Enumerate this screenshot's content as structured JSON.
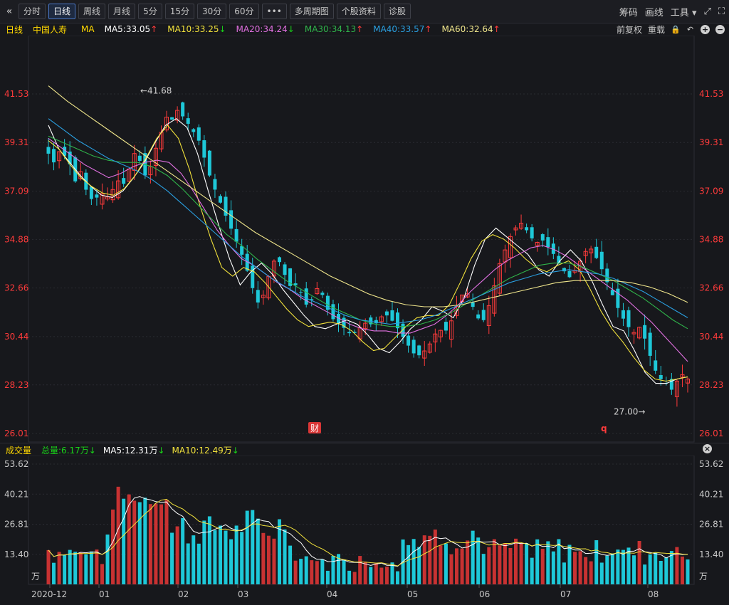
{
  "toolbar": {
    "back_glyph": "«",
    "buttons": [
      "分时",
      "日线",
      "周线",
      "月线",
      "5分",
      "15分",
      "30分",
      "60分",
      "•••",
      "多周期图",
      "个股资料",
      "诊股"
    ],
    "active_index": 1,
    "right": {
      "chips": "筹码",
      "draw": "画线",
      "tools": "工具"
    }
  },
  "legend": {
    "period": "日线",
    "stock_name": "中国人寿",
    "ma_label": "MA",
    "ma": [
      {
        "label": "MA5:33.05",
        "dir": "up",
        "color": "#ffffff"
      },
      {
        "label": "MA10:33.25",
        "dir": "down",
        "color": "#f2e23c"
      },
      {
        "label": "MA20:34.24",
        "dir": "down",
        "color": "#e070e0"
      },
      {
        "label": "MA30:34.13",
        "dir": "up",
        "color": "#2fb34a"
      },
      {
        "label": "MA40:33.57",
        "dir": "up",
        "color": "#2a9fe0"
      },
      {
        "label": "MA60:32.64",
        "dir": "up",
        "color": "#f0e68c"
      }
    ],
    "adjust": "前复权",
    "redraw": "重载"
  },
  "volume_legend": {
    "title": "成交量",
    "total": "总量:6.17万",
    "ma5": "MA5:12.31万",
    "ma10": "MA10:12.49万"
  },
  "chart_data": [
    {
      "type": "candlestick",
      "y_ticks": [
        "41.53",
        "39.31",
        "37.09",
        "34.88",
        "32.66",
        "30.44",
        "28.23",
        "26.01"
      ],
      "ylim": [
        26.01,
        41.53
      ],
      "x_labels": [
        "2020-12",
        "01",
        "02",
        "03",
        "04",
        "05",
        "06",
        "07",
        "08"
      ],
      "annotations": {
        "high": "←41.68",
        "low": "27.00→",
        "badge_fin": "财",
        "badge_q": "q"
      },
      "colors": {
        "up": "#ff3b3b",
        "down": "#1ec8d8"
      },
      "close_path": [
        38.8,
        38.4,
        38.9,
        38.7,
        38.3,
        37.5,
        38.0,
        37.1,
        36.7,
        36.8,
        37.0,
        36.8,
        37.2,
        37.6,
        37.4,
        38.2,
        38.9,
        38.4,
        37.7,
        38.3,
        39.2,
        39.9,
        40.6,
        40.3,
        40.9,
        40.4,
        40.1,
        39.7,
        39.3,
        38.4,
        37.6,
        37.0,
        36.4,
        35.8,
        35.2,
        34.6,
        34.0,
        33.2,
        32.4,
        31.8,
        32.6,
        33.5,
        34.1,
        33.7,
        33.0,
        32.6,
        32.9,
        32.2,
        31.7,
        32.4,
        32.8,
        32.0,
        31.4,
        31.1,
        31.0,
        30.7,
        30.5,
        30.7,
        31.0,
        31.1,
        30.9,
        31.2,
        31.5,
        31.3,
        31.0,
        30.6,
        30.2,
        29.8,
        29.5,
        29.7,
        29.9,
        30.4,
        30.8,
        30.6,
        30.9,
        31.6,
        32.2,
        32.6,
        32.0,
        31.4,
        31.0,
        31.6,
        32.4,
        33.6,
        34.2,
        34.9,
        35.3,
        35.7,
        35.4,
        35.0,
        34.7,
        34.9,
        34.6,
        34.3,
        33.9,
        33.5,
        33.1,
        33.4,
        33.8,
        34.3,
        34.5,
        34.1,
        33.6,
        33.0,
        32.4,
        31.8,
        31.3,
        30.9,
        30.6,
        30.9,
        30.4,
        29.6,
        28.9,
        28.5,
        28.3,
        28.0,
        28.4,
        28.7,
        28.5
      ],
      "ma_series": [
        {
          "name": "MA5",
          "color": "#ffffff",
          "values": [
            40.1,
            39.0,
            38.4,
            37.8,
            37.3,
            36.9,
            36.8,
            37.1,
            37.7,
            38.4,
            39.3,
            40.1,
            40.4,
            40.0,
            38.8,
            37.1,
            35.5,
            34.0,
            32.8,
            33.4,
            33.8,
            33.3,
            32.6,
            32.0,
            31.4,
            30.9,
            30.8,
            31.0,
            31.2,
            31.0,
            30.5,
            29.9,
            29.7,
            30.2,
            30.8,
            31.2,
            31.8,
            31.6,
            31.3,
            32.2,
            33.7,
            34.9,
            35.4,
            35.0,
            34.6,
            34.2,
            33.5,
            33.2,
            33.9,
            34.4,
            33.9,
            33.0,
            31.9,
            30.9,
            30.7,
            29.8,
            28.8,
            28.3,
            28.3,
            28.5,
            28.6
          ]
        },
        {
          "name": "MA10",
          "color": "#f2e23c",
          "values": [
            39.4,
            39.0,
            38.3,
            37.7,
            37.3,
            37.0,
            36.9,
            37.2,
            37.8,
            38.6,
            39.5,
            40.1,
            39.5,
            38.1,
            36.4,
            34.9,
            33.6,
            33.2,
            33.6,
            33.4,
            32.9,
            32.3,
            31.7,
            31.2,
            30.9,
            31.0,
            31.1,
            31.0,
            30.7,
            30.2,
            29.8,
            29.9,
            30.4,
            30.9,
            31.3,
            31.4,
            31.4,
            31.9,
            32.9,
            34.0,
            34.8,
            35.1,
            34.9,
            34.5,
            34.0,
            33.6,
            33.4,
            33.7,
            33.9,
            33.5,
            32.6,
            31.6,
            30.8,
            30.2,
            29.5,
            28.9,
            28.5,
            28.4,
            28.5,
            28.6
          ]
        },
        {
          "name": "MA20",
          "color": "#e070e0",
          "values": [
            39.5,
            39.1,
            38.7,
            38.3,
            38.0,
            37.7,
            37.9,
            38.2,
            38.4,
            38.5,
            38.4,
            37.9,
            37.1,
            36.2,
            35.3,
            34.6,
            34.0,
            33.7,
            33.3,
            32.9,
            32.6,
            32.2,
            31.9,
            31.6,
            31.3,
            31.0,
            30.8,
            30.7,
            30.7,
            30.6,
            30.6,
            30.8,
            31.0,
            31.4,
            31.9,
            32.5,
            33.0,
            33.5,
            33.9,
            34.2,
            34.5,
            34.6,
            34.4,
            34.1,
            33.7,
            33.3,
            32.9,
            32.5,
            32.1,
            31.6,
            31.1,
            30.5,
            29.9,
            29.3
          ]
        },
        {
          "name": "MA30",
          "color": "#2fb34a",
          "values": [
            39.6,
            39.3,
            39.0,
            38.7,
            38.5,
            38.4,
            38.4,
            38.2,
            37.8,
            37.2,
            36.5,
            35.8,
            35.1,
            34.6,
            34.0,
            33.5,
            33.0,
            32.6,
            32.2,
            31.8,
            31.5,
            31.2,
            31.0,
            30.9,
            30.9,
            31.0,
            31.2,
            31.5,
            31.9,
            32.3,
            32.7,
            33.1,
            33.4,
            33.7,
            33.8,
            33.8,
            33.6,
            33.3,
            33.0,
            32.6,
            32.2,
            31.7,
            31.2,
            30.8
          ]
        },
        {
          "name": "MA40",
          "color": "#2a9fe0",
          "values": [
            40.4,
            39.9,
            39.4,
            39.0,
            38.6,
            38.3,
            38.0,
            37.6,
            37.1,
            36.5,
            35.9,
            35.3,
            34.7,
            34.1,
            33.6,
            33.1,
            32.7,
            32.3,
            32.0,
            31.7,
            31.4,
            31.2,
            31.1,
            31.0,
            31.1,
            31.2,
            31.4,
            31.7,
            32.0,
            32.3,
            32.6,
            32.9,
            33.1,
            33.3,
            33.4,
            33.5,
            33.4,
            33.3,
            33.1,
            32.8,
            32.5,
            32.1,
            31.7,
            31.3
          ]
        },
        {
          "name": "MA60",
          "color": "#f0e68c",
          "values": [
            41.9,
            41.2,
            40.6,
            40.0,
            39.4,
            38.8,
            38.2,
            37.6,
            37.0,
            36.4,
            35.8,
            35.2,
            34.7,
            34.2,
            33.7,
            33.2,
            32.8,
            32.4,
            32.1,
            31.9,
            31.8,
            31.8,
            31.9,
            32.1,
            32.3,
            32.5,
            32.7,
            32.9,
            33.0,
            33.0,
            33.0,
            32.9,
            32.7,
            32.4,
            32.0
          ]
        }
      ]
    },
    {
      "type": "bar",
      "y_ticks": [
        "53.62",
        "40.21",
        "26.81",
        "13.40",
        "万"
      ],
      "ylim": [
        0,
        53.62
      ],
      "note": "volume in 万 (ten-thousand lots)"
    }
  ]
}
